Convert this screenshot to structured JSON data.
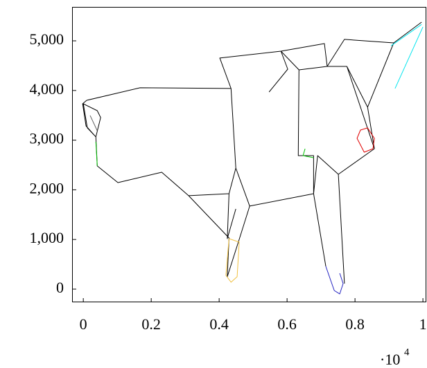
{
  "chart_data": {
    "type": "line",
    "xlim": [
      -0.033,
      1.012
    ],
    "ylim": [
      -265,
      5683
    ],
    "xticks": [
      0,
      0.2,
      0.4,
      0.6,
      0.8,
      1
    ],
    "yticks": [
      0,
      {
        "value": 1000,
        "label": "1,000"
      },
      {
        "value": 2000,
        "label": "2,000"
      },
      {
        "value": 3000,
        "label": "3,000"
      },
      {
        "value": 4000,
        "label": "4,000"
      },
      {
        "value": 5000,
        "label": "5,000"
      }
    ],
    "x_scale_label": {
      "base": "·10",
      "exponent": "4"
    },
    "series": [
      {
        "color": "#000000",
        "x": [
          0.01,
          0.167,
          0.435,
          0.449,
          0.49,
          0.678,
          0.69,
          0.751,
          0.857,
          0.837,
          0.914,
          0.996,
          null,
          0.041,
          0.102,
          0.231,
          0.31,
          0.429,
          0.449,
          null,
          0.31,
          0.429,
          0.424,
          0.459,
          0.49,
          null,
          0.429,
          0.424,
          0.449,
          null,
          0.01,
          -0.002,
          0.008,
          0.037,
          0.041,
          null,
          0.0,
          0.041,
          0.051,
          0.037,
          0.012,
          0.0,
          null,
          0.435,
          0.402,
          0.582,
          0.602,
          0.547,
          null,
          0.582,
          0.71,
          0.718,
          0.635,
          0.582,
          null,
          0.718,
          0.769,
          0.914,
          0.837,
          0.776,
          0.718,
          null,
          0.635,
          0.633,
          0.678,
          0.678,
          0.714,
          null,
          0.751,
          0.769,
          null,
          0.776,
          0.857
        ],
        "y": [
          3803,
          4054,
          4040,
          2438,
          1672,
          1922,
          2688,
          2312,
          2828,
          3664,
          4959,
          5377,
          null,
          2480,
          2145,
          2354,
          1881,
          1922,
          2438,
          null,
          1881,
          1031,
          251,
          1003,
          1672,
          null,
          1922,
          1017,
          1616,
          null,
          3803,
          3733,
          3287,
          3065,
          2480,
          null,
          3733,
          3594,
          3455,
          3065,
          3246,
          3733,
          null,
          4040,
          4653,
          4792,
          4430,
          3970,
          null,
          4792,
          4945,
          4485,
          4416,
          4792,
          null,
          4485,
          5029,
          4959,
          3664,
          4485,
          4485,
          null,
          4416,
          2688,
          2688,
          1922,
          460,
          null,
          2312,
          111,
          null,
          4485,
          2828
        ]
      },
      {
        "color": "#00e5ee",
        "x": [
          0.906,
          0.996,
          null,
          1.0,
          0.918
        ],
        "y": [
          4900,
          5330,
          null,
          5280,
          4040
        ]
      },
      {
        "color": "#e00000",
        "x": [
          0.837,
          0.857,
          0.853,
          0.827,
          0.806,
          0.816,
          0.837
        ],
        "y": [
          3246,
          3037,
          2828,
          2758,
          3037,
          3204,
          3246
        ]
      },
      {
        "color": "#00c000",
        "x": [
          0.653,
          0.647,
          0.678,
          null,
          0.037,
          0.041
        ],
        "y": [
          2828,
          2688,
          2646,
          null,
          2967,
          2480
        ]
      },
      {
        "color": "#f0c040",
        "x": [
          0.429,
          0.459,
          0.453,
          0.435,
          0.42,
          0.429
        ],
        "y": [
          1017,
          947,
          251,
          139,
          279,
          1017
        ]
      },
      {
        "color": "#2020c0",
        "x": [
          0.714,
          0.739,
          0.755,
          0.765,
          0.755
        ],
        "y": [
          460,
          -28,
          -97,
          111,
          320
        ]
      },
      {
        "color": "#606060",
        "x": [
          0.02,
          0.041
        ],
        "y": [
          3497,
          3190
        ]
      }
    ]
  }
}
